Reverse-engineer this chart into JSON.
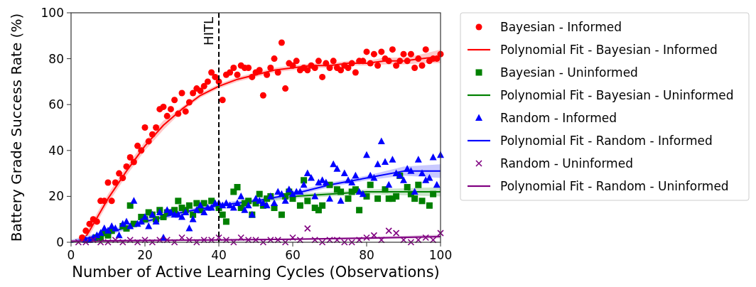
{
  "chart_data": {
    "type": "scatter",
    "xlabel": "Number of Active Learning Cycles (Observations)",
    "ylabel": "Battery Grade Success Rate (%)",
    "xlim": [
      0,
      100
    ],
    "ylim": [
      0,
      100
    ],
    "xticks": [
      0,
      20,
      40,
      60,
      80,
      100
    ],
    "yticks": [
      0,
      20,
      40,
      60,
      80,
      100
    ],
    "grid": false,
    "legend": "top right",
    "x": [
      3,
      4,
      5,
      6,
      7,
      8,
      9,
      10,
      11,
      12,
      13,
      14,
      15,
      16,
      17,
      18,
      19,
      20,
      21,
      22,
      23,
      24,
      25,
      26,
      27,
      28,
      29,
      30,
      31,
      32,
      33,
      34,
      35,
      36,
      37,
      38,
      39,
      40,
      41,
      42,
      43,
      44,
      45,
      46,
      47,
      48,
      49,
      50,
      51,
      52,
      53,
      54,
      55,
      56,
      57,
      58,
      59,
      60,
      61,
      62,
      63,
      64,
      65,
      66,
      67,
      68,
      69,
      70,
      71,
      72,
      73,
      74,
      75,
      76,
      77,
      78,
      79,
      80,
      81,
      82,
      83,
      84,
      85,
      86,
      87,
      88,
      89,
      90,
      91,
      92,
      93,
      94,
      95,
      96,
      97,
      98,
      99,
      100
    ],
    "ref_lines": [
      {
        "axis": "x",
        "value": 40,
        "label": "HITL",
        "color": "#000000",
        "line_style": "dashed"
      }
    ],
    "series": [
      {
        "name": "Bayesian - Informed",
        "marker": "circle",
        "color": "#ff0000",
        "values": [
          2,
          5,
          8,
          10,
          9,
          18,
          18,
          26,
          18,
          26,
          30,
          28,
          33,
          37,
          35,
          42,
          40,
          50,
          44,
          47,
          50,
          58,
          59,
          55,
          58,
          62,
          56,
          65,
          57,
          61,
          65,
          67,
          66,
          68,
          70,
          74,
          72,
          70,
          62,
          73,
          74,
          76,
          73,
          77,
          76,
          76,
          72,
          74,
          75,
          64,
          73,
          76,
          80,
          74,
          87,
          67,
          78,
          77,
          79,
          75,
          76,
          75,
          77,
          76,
          79,
          72,
          78,
          76,
          79,
          76,
          75,
          77,
          76,
          78,
          74,
          79,
          79,
          83,
          78,
          82,
          77,
          83,
          80,
          79,
          84,
          77,
          79,
          82,
          79,
          82,
          76,
          80,
          77,
          84,
          79,
          80,
          80,
          82
        ]
      },
      {
        "name": "Polynomial Fit - Bayesian - Informed",
        "type": "line",
        "color": "#ff0000",
        "x": [
          3,
          5,
          10,
          15,
          20,
          25,
          30,
          35,
          40,
          45,
          50,
          55,
          60,
          65,
          70,
          75,
          80,
          85,
          90,
          95,
          100
        ],
        "values": [
          0,
          5,
          19,
          31,
          42,
          51,
          58,
          64,
          68,
          71,
          73,
          75,
          76,
          77,
          77,
          78,
          78,
          79,
          79,
          80,
          81
        ],
        "lower": [
          0,
          3,
          17,
          29,
          40,
          49,
          57,
          63,
          67,
          70,
          72,
          74,
          75,
          76,
          76,
          77,
          77,
          77.5,
          77.5,
          78,
          78
        ],
        "upper": [
          1,
          7,
          21,
          33,
          44,
          53,
          59,
          65,
          69,
          72,
          74,
          76,
          77,
          78,
          78,
          79,
          79,
          80.5,
          80.5,
          82,
          84
        ]
      },
      {
        "name": "Bayesian - Uninformed",
        "marker": "square",
        "color": "#008000",
        "values": [
          null,
          null,
          null,
          null,
          2,
          2,
          4,
          3,
          5,
          null,
          null,
          7,
          6,
          16,
          8,
          null,
          11,
          10,
          13,
          12,
          10,
          14,
          11,
          13,
          null,
          14,
          18,
          15,
          14,
          16,
          12,
          17,
          14,
          17,
          null,
          18,
          null,
          15,
          12,
          9,
          null,
          22,
          24,
          15,
          17,
          18,
          12,
          17,
          21,
          16,
          19,
          20,
          15,
          null,
          12,
          20,
          22,
          19,
          null,
          16,
          27,
          18,
          null,
          15,
          14,
          16,
          null,
          25,
          null,
          23,
          22,
          null,
          19,
          22,
          23,
          14,
          null,
          20,
          25,
          null,
          19,
          null,
          23,
          19,
          19,
          20,
          29,
          null,
          24,
          21,
          19,
          25,
          18,
          null,
          16,
          21,
          null,
          null
        ]
      },
      {
        "name": "Polynomial Fit - Bayesian - Uninformed",
        "type": "line",
        "color": "#008000",
        "x": [
          0,
          10,
          20,
          30,
          40,
          50,
          60,
          70,
          80,
          90,
          100
        ],
        "values": [
          0,
          4,
          9,
          13,
          16,
          18,
          20,
          21,
          22,
          22,
          22
        ],
        "lower": [
          0,
          3,
          8,
          12,
          15,
          17,
          19,
          20,
          21,
          20.5,
          20
        ],
        "upper": [
          1,
          5,
          10,
          14,
          17,
          19,
          21,
          22,
          23,
          23.5,
          24
        ]
      },
      {
        "name": "Random - Informed",
        "marker": "triangle",
        "color": "#0000ff",
        "values": [
          null,
          1,
          1,
          2,
          3,
          4,
          6,
          5,
          7,
          6,
          3,
          8,
          9,
          7,
          18,
          8,
          9,
          11,
          7,
          12,
          9,
          13,
          2,
          14,
          13,
          12,
          12,
          11,
          13,
          6,
          10,
          14,
          16,
          13,
          15,
          15,
          17,
          17,
          16,
          17,
          16,
          15,
          17,
          20,
          14,
          16,
          12,
          19,
          18,
          17,
          16,
          20,
          17,
          22,
          21,
          18,
          23,
          21,
          22,
          22,
          25,
          30,
          28,
          20,
          26,
          27,
          26,
          19,
          34,
          32,
          18,
          30,
          27,
          26,
          29,
          22,
          21,
          38,
          29,
          28,
          34,
          44,
          35,
          25,
          36,
          30,
          29,
          27,
          32,
          31,
          22,
          36,
          30,
          27,
          28,
          37,
          25,
          38
        ]
      },
      {
        "name": "Polynomial Fit - Random - Informed",
        "type": "line",
        "color": "#0000ff",
        "x": [
          0,
          10,
          20,
          30,
          40,
          50,
          60,
          70,
          80,
          90,
          100
        ],
        "values": [
          0,
          4,
          9,
          13,
          16,
          18,
          21,
          25,
          28,
          31,
          31
        ],
        "lower": [
          0,
          3,
          8,
          12,
          15,
          17,
          20,
          24,
          27,
          29,
          28
        ],
        "upper": [
          1,
          5,
          10,
          14,
          17,
          19,
          22,
          26,
          29,
          33,
          34
        ]
      },
      {
        "name": "Random - Uninformed",
        "marker": "cross",
        "color": "#800080",
        "x": [
          2,
          4,
          6,
          8,
          10,
          12,
          14,
          16,
          18,
          20,
          22,
          24,
          26,
          28,
          30,
          32,
          34,
          36,
          38,
          40,
          42,
          44,
          46,
          48,
          50,
          52,
          54,
          56,
          58,
          60,
          62,
          64,
          66,
          68,
          70,
          72,
          74,
          76,
          78,
          80,
          82,
          84,
          86,
          88,
          90,
          92,
          94,
          96,
          98,
          100
        ],
        "values": [
          0,
          0,
          1,
          0,
          0,
          1,
          0,
          1,
          0,
          1,
          0,
          1,
          1,
          0,
          2,
          1,
          0,
          1,
          1,
          2,
          1,
          0,
          2,
          1,
          1,
          0,
          1,
          1,
          0,
          2,
          1,
          6,
          1,
          0,
          1,
          1,
          0,
          0,
          1,
          2,
          3,
          1,
          5,
          4,
          1,
          0,
          1,
          2,
          1,
          4
        ]
      },
      {
        "name": "Polynomial Fit - Random - Uninformed",
        "type": "line",
        "color": "#800080",
        "x": [
          0,
          20,
          40,
          60,
          80,
          100
        ],
        "values": [
          0.5,
          0.8,
          1,
          1.3,
          1.8,
          2.5
        ],
        "lower": [
          0,
          0.4,
          0.7,
          1,
          1.3,
          1.7
        ],
        "upper": [
          1,
          1.2,
          1.3,
          1.6,
          2.3,
          3.3
        ]
      }
    ]
  }
}
